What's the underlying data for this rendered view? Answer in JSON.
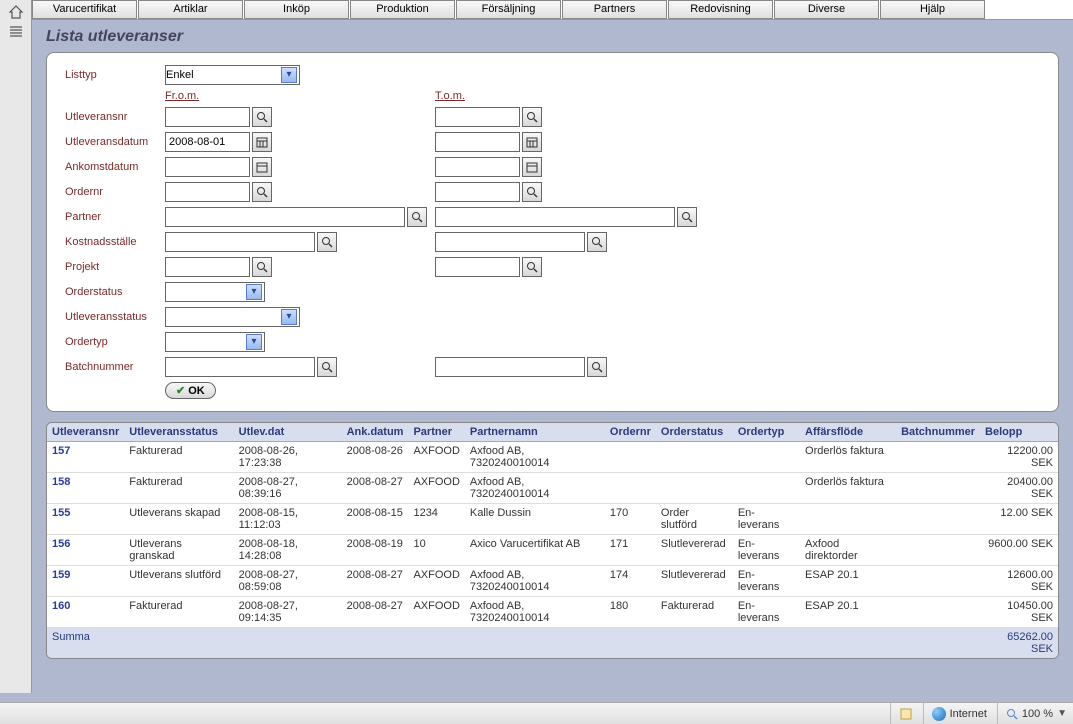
{
  "menu": [
    "Varucertifikat",
    "Artiklar",
    "Inköp",
    "Produktion",
    "Försäljning",
    "Partners",
    "Redovisning",
    "Diverse",
    "Hjälp"
  ],
  "page_title": "Lista utleveranser",
  "labels": {
    "listtyp": "Listtyp",
    "from": "Fr.o.m.",
    "tom": "T.o.m.",
    "utleveransnr": "Utleveransnr",
    "utleveransdatum": "Utleveransdatum",
    "ankomstdatum": "Ankomstdatum",
    "ordernr": "Ordernr",
    "partner": "Partner",
    "kostnadsstalle": "Kostnadsställe",
    "projekt": "Projekt",
    "orderstatus": "Orderstatus",
    "utleveransstatus": "Utleveransstatus",
    "ordertyp": "Ordertyp",
    "batchnummer": "Batchnummer",
    "ok": "OK"
  },
  "values": {
    "listtyp": "Enkel",
    "utleveransdatum_from": "2008-08-01"
  },
  "table": {
    "headers": [
      "Utleveransnr",
      "Utleveransstatus",
      "Utlev.dat",
      "Ank.datum",
      "Partner",
      "Partnernamn",
      "Ordernr",
      "Orderstatus",
      "Ordertyp",
      "Affärsflöde",
      "Batchnummer",
      "Belopp"
    ],
    "rows": [
      {
        "nr": "157",
        "status": "Fakturerad",
        "utlevdat": "2008-08-26, 17:23:38",
        "ankdat": "2008-08-26",
        "partner": "AXFOOD",
        "partnernamn": "Axfood AB, 7320240010014",
        "ordernr": "",
        "orderstatus": "",
        "ordertyp": "",
        "afflode": "Orderlös faktura",
        "batch": "",
        "belopp": "12200.00 SEK"
      },
      {
        "nr": "158",
        "status": "Fakturerad",
        "utlevdat": "2008-08-27, 08:39:16",
        "ankdat": "2008-08-27",
        "partner": "AXFOOD",
        "partnernamn": "Axfood AB, 7320240010014",
        "ordernr": "",
        "orderstatus": "",
        "ordertyp": "",
        "afflode": "Orderlös faktura",
        "batch": "",
        "belopp": "20400.00 SEK"
      },
      {
        "nr": "155",
        "status": "Utleverans skapad",
        "utlevdat": "2008-08-15, 11:12:03",
        "ankdat": "2008-08-15",
        "partner": "1234",
        "partnernamn": "Kalle Dussin",
        "ordernr": "170",
        "orderstatus": "Order slutförd",
        "ordertyp": "En-leverans",
        "afflode": "",
        "batch": "",
        "belopp": "12.00 SEK"
      },
      {
        "nr": "156",
        "status": "Utleverans granskad",
        "utlevdat": "2008-08-18, 14:28:08",
        "ankdat": "2008-08-19",
        "partner": "10",
        "partnernamn": "Axico Varucertifikat AB",
        "ordernr": "171",
        "orderstatus": "Slutlevererad",
        "ordertyp": "En-leverans",
        "afflode": "Axfood direktorder",
        "batch": "",
        "belopp": "9600.00 SEK"
      },
      {
        "nr": "159",
        "status": "Utleverans slutförd",
        "utlevdat": "2008-08-27, 08:59:08",
        "ankdat": "2008-08-27",
        "partner": "AXFOOD",
        "partnernamn": "Axfood AB, 7320240010014",
        "ordernr": "174",
        "orderstatus": "Slutlevererad",
        "ordertyp": "En-leverans",
        "afflode": "ESAP 20.1",
        "batch": "",
        "belopp": "12600.00 SEK"
      },
      {
        "nr": "160",
        "status": "Fakturerad",
        "utlevdat": "2008-08-27, 09:14:35",
        "ankdat": "2008-08-27",
        "partner": "AXFOOD",
        "partnernamn": "Axfood AB, 7320240010014",
        "ordernr": "180",
        "orderstatus": "Fakturerad",
        "ordertyp": "En-leverans",
        "afflode": "ESAP 20.1",
        "batch": "",
        "belopp": "10450.00 SEK"
      }
    ],
    "sum_label": "Summa",
    "sum_value": "65262.00 SEK"
  },
  "status": {
    "zone": "Internet",
    "zoom": "100 %"
  }
}
